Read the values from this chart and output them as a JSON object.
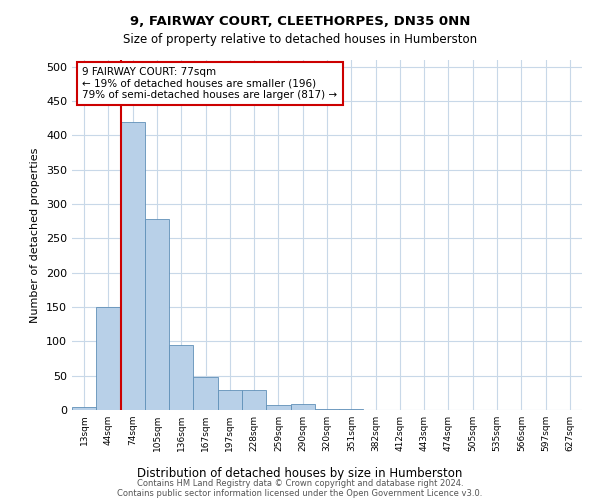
{
  "title": "9, FAIRWAY COURT, CLEETHORPES, DN35 0NN",
  "subtitle": "Size of property relative to detached houses in Humberston",
  "xlabel": "Distribution of detached houses by size in Humberston",
  "ylabel": "Number of detached properties",
  "categories": [
    "13sqm",
    "44sqm",
    "74sqm",
    "105sqm",
    "136sqm",
    "167sqm",
    "197sqm",
    "228sqm",
    "259sqm",
    "290sqm",
    "320sqm",
    "351sqm",
    "382sqm",
    "412sqm",
    "443sqm",
    "474sqm",
    "505sqm",
    "535sqm",
    "566sqm",
    "597sqm",
    "627sqm"
  ],
  "values": [
    5,
    150,
    420,
    278,
    95,
    48,
    29,
    29,
    8,
    9,
    2,
    1,
    0,
    0,
    0,
    0,
    0,
    0,
    0,
    0,
    0
  ],
  "bar_color": "#b8d0e8",
  "bar_edge_color": "#6090b8",
  "property_line_color": "#cc0000",
  "annotation_text": "9 FAIRWAY COURT: 77sqm\n← 19% of detached houses are smaller (196)\n79% of semi-detached houses are larger (817) →",
  "annotation_box_color": "#ffffff",
  "annotation_box_edge": "#cc0000",
  "ylim": [
    0,
    510
  ],
  "yticks": [
    0,
    50,
    100,
    150,
    200,
    250,
    300,
    350,
    400,
    450,
    500
  ],
  "footer_line1": "Contains HM Land Registry data © Crown copyright and database right 2024.",
  "footer_line2": "Contains public sector information licensed under the Open Government Licence v3.0.",
  "bg_color": "#ffffff",
  "grid_color": "#c8d8e8",
  "property_line_index": 2
}
